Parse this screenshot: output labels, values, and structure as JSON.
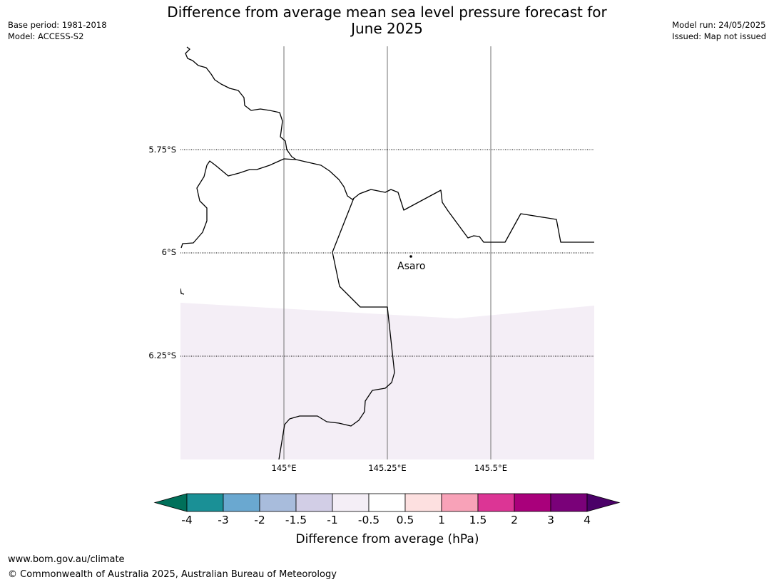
{
  "header": {
    "title_line1": "Difference from average mean sea level pressure forecast for",
    "title_line2": "June 2025",
    "base_period": "Base period: 1981-2018",
    "model": "Model: ACCESS-S2",
    "model_run": "Model run: 24/05/2025",
    "issued": "Issued: Map not issued"
  },
  "map": {
    "latitude_labels": [
      "5.75°S",
      "6°S",
      "6.25°S"
    ],
    "longitude_labels": [
      "145°E",
      "145.25°E",
      "145.5°E"
    ],
    "place": {
      "name": "Asaro"
    },
    "shaded_band": {
      "category": "-0.5 to -1",
      "color": "#f4eef6"
    }
  },
  "colorbar": {
    "label": "Difference from average (hPa)",
    "ticks": [
      "-4",
      "-3",
      "-2",
      "-1.5",
      "-1",
      "-0.5",
      "0.5",
      "1",
      "1.5",
      "2",
      "3",
      "4"
    ],
    "colors": [
      "#1a9096",
      "#6aa8d0",
      "#a8bcdc",
      "#d2cee6",
      "#f4eef6",
      "#ffffff",
      "#fde0e0",
      "#f8a2b8",
      "#dc3595",
      "#a9007b",
      "#7a0179"
    ],
    "under_color": "#00705a",
    "over_color": "#4b0168"
  },
  "footer": {
    "url": "www.bom.gov.au/climate",
    "copyright": "© Commonwealth of Australia 2025, Australian Bureau of Meteorology"
  }
}
